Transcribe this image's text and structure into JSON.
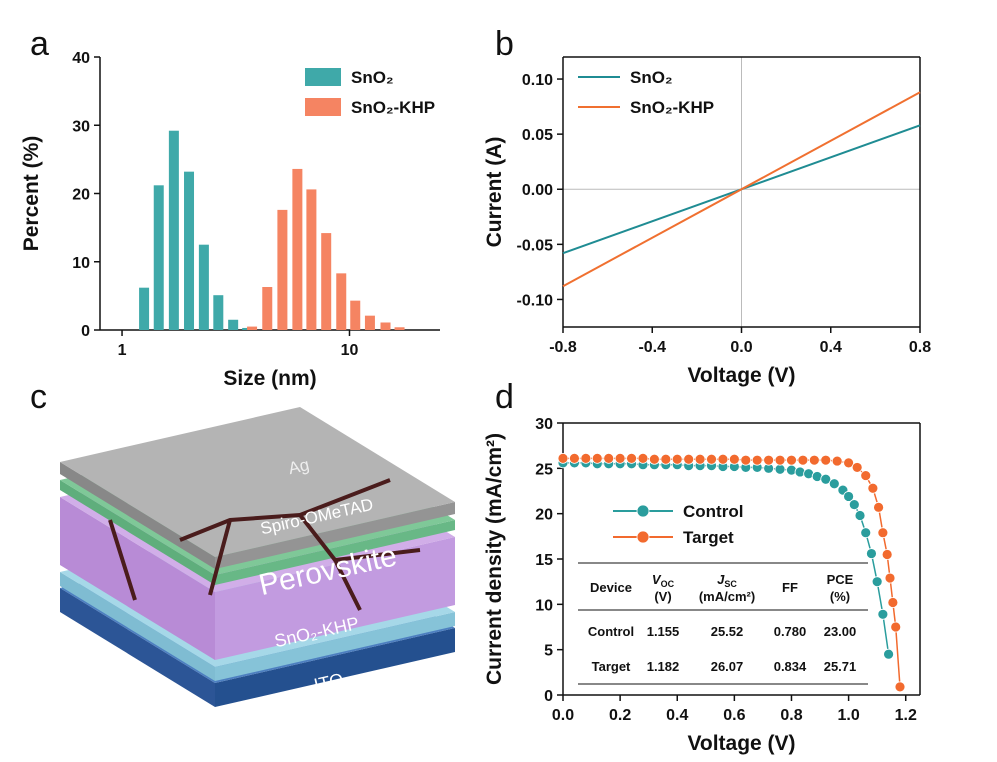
{
  "chart_data": [
    {
      "panel_label": "a",
      "type": "bar",
      "xlabel": "Size (nm)",
      "ylabel": "Percent (%)",
      "xscale": "log",
      "xlim": [
        0.8,
        25
      ],
      "xticks": [
        1,
        10
      ],
      "ylim": [
        0,
        40
      ],
      "yticks": [
        0,
        10,
        20,
        30,
        40
      ],
      "box": false,
      "legend": "upper right",
      "series": [
        {
          "name": "SnO₂",
          "color": "#3fa9a9",
          "x": [
            1.25,
            1.45,
            1.69,
            1.97,
            2.29,
            2.65,
            3.08,
            3.55
          ],
          "values": [
            6.2,
            21.2,
            29.2,
            23.2,
            12.5,
            5.1,
            1.5,
            0.3
          ]
        },
        {
          "name": "SnO₂-KHP",
          "color": "#f58462",
          "x": [
            3.73,
            4.35,
            5.07,
            5.9,
            6.8,
            7.9,
            9.2,
            10.6,
            12.3,
            14.4,
            16.6
          ],
          "values": [
            0.5,
            6.3,
            17.6,
            23.6,
            20.6,
            14.2,
            8.3,
            4.3,
            2.1,
            1.1,
            0.4
          ]
        }
      ]
    },
    {
      "panel_label": "b",
      "type": "line",
      "xlabel": "Voltage (V)",
      "ylabel": "Current (A)",
      "xlim": [
        -0.8,
        0.8
      ],
      "xticks": [
        -0.8,
        -0.4,
        {
          "value": 0,
          "label": "0.0"
        },
        0.4,
        0.8
      ],
      "ylim": [
        -0.125,
        0.12
      ],
      "yticks": [
        {
          "value": -0.1,
          "label": "-0.10"
        },
        {
          "value": -0.05,
          "label": "-0.05"
        },
        {
          "value": 0,
          "label": "0.00"
        },
        {
          "value": 0.05,
          "label": "0.05"
        },
        {
          "value": 0.1,
          "label": "0.10"
        }
      ],
      "zero_lines": true,
      "box": true,
      "legend": "upper left",
      "series": [
        {
          "name": "SnO₂",
          "color": "#1f8c93",
          "x": [
            -0.8,
            0.8
          ],
          "values": [
            -0.058,
            0.058
          ]
        },
        {
          "name": "SnO₂-KHP",
          "color": "#f07030",
          "x": [
            -0.8,
            0.8
          ],
          "values": [
            -0.088,
            0.088
          ]
        }
      ]
    },
    {
      "panel_label": "d",
      "type": "line",
      "markers": true,
      "xlabel": "Voltage (V)",
      "ylabel": "Current density (mA/cm²)",
      "xlim": [
        0,
        1.25
      ],
      "xticks": [
        {
          "value": 0,
          "label": "0.0"
        },
        0.2,
        0.4,
        0.6,
        0.8,
        {
          "value": 1,
          "label": "1.0"
        },
        1.2
      ],
      "ylim": [
        0,
        30
      ],
      "yticks": [
        0,
        5,
        10,
        15,
        20,
        25,
        30
      ],
      "box": true,
      "legend": "center left",
      "series": [
        {
          "name": "Control",
          "color": "#2a9d9d",
          "x": [
            0,
            0.04,
            0.08,
            0.12,
            0.16,
            0.2,
            0.24,
            0.28,
            0.32,
            0.36,
            0.4,
            0.44,
            0.48,
            0.52,
            0.56,
            0.6,
            0.64,
            0.68,
            0.72,
            0.76,
            0.8,
            0.83,
            0.86,
            0.89,
            0.92,
            0.95,
            0.98,
            1.0,
            1.02,
            1.04,
            1.06,
            1.08,
            1.1,
            1.12,
            1.14
          ],
          "values": [
            25.6,
            25.6,
            25.6,
            25.5,
            25.5,
            25.5,
            25.5,
            25.4,
            25.4,
            25.4,
            25.4,
            25.3,
            25.3,
            25.3,
            25.2,
            25.2,
            25.1,
            25.1,
            25.0,
            24.9,
            24.8,
            24.6,
            24.4,
            24.1,
            23.8,
            23.3,
            22.6,
            21.9,
            21.0,
            19.8,
            17.9,
            15.6,
            12.5,
            8.9,
            4.5
          ]
        },
        {
          "name": "Target",
          "color": "#f26a2e",
          "x": [
            0,
            0.04,
            0.08,
            0.12,
            0.16,
            0.2,
            0.24,
            0.28,
            0.32,
            0.36,
            0.4,
            0.44,
            0.48,
            0.52,
            0.56,
            0.6,
            0.64,
            0.68,
            0.72,
            0.76,
            0.8,
            0.84,
            0.88,
            0.92,
            0.96,
            1.0,
            1.03,
            1.06,
            1.085,
            1.105,
            1.12,
            1.135,
            1.145,
            1.155,
            1.165,
            1.18
          ],
          "values": [
            26.1,
            26.1,
            26.1,
            26.1,
            26.1,
            26.1,
            26.1,
            26.1,
            26.0,
            26.0,
            26.0,
            26.0,
            26.0,
            26.0,
            26.0,
            26.0,
            25.9,
            25.9,
            25.9,
            25.9,
            25.9,
            25.9,
            25.9,
            25.9,
            25.8,
            25.6,
            25.1,
            24.2,
            22.8,
            20.7,
            17.9,
            15.5,
            12.9,
            10.2,
            7.5,
            0.9
          ]
        }
      ],
      "table": {
        "header": [
          "Device",
          {
            "main": "V",
            "sub": "OC",
            "unit": "(V)"
          },
          {
            "main": "J",
            "sub": "SC",
            "unit": "(mA/cm²)"
          },
          "FF",
          {
            "main": "PCE",
            "unit": "(%)"
          }
        ],
        "rows": [
          [
            "Control",
            "1.155",
            "25.52",
            "0.780",
            "23.00"
          ],
          [
            "Target",
            "1.182",
            "26.07",
            "0.834",
            "25.71"
          ]
        ]
      }
    }
  ],
  "diagram": {
    "panel_label": "c",
    "layers": [
      "Ag",
      "Spiro-OMeTAD",
      "Perovskite",
      "SnO₂-KHP",
      "ITO"
    ]
  }
}
